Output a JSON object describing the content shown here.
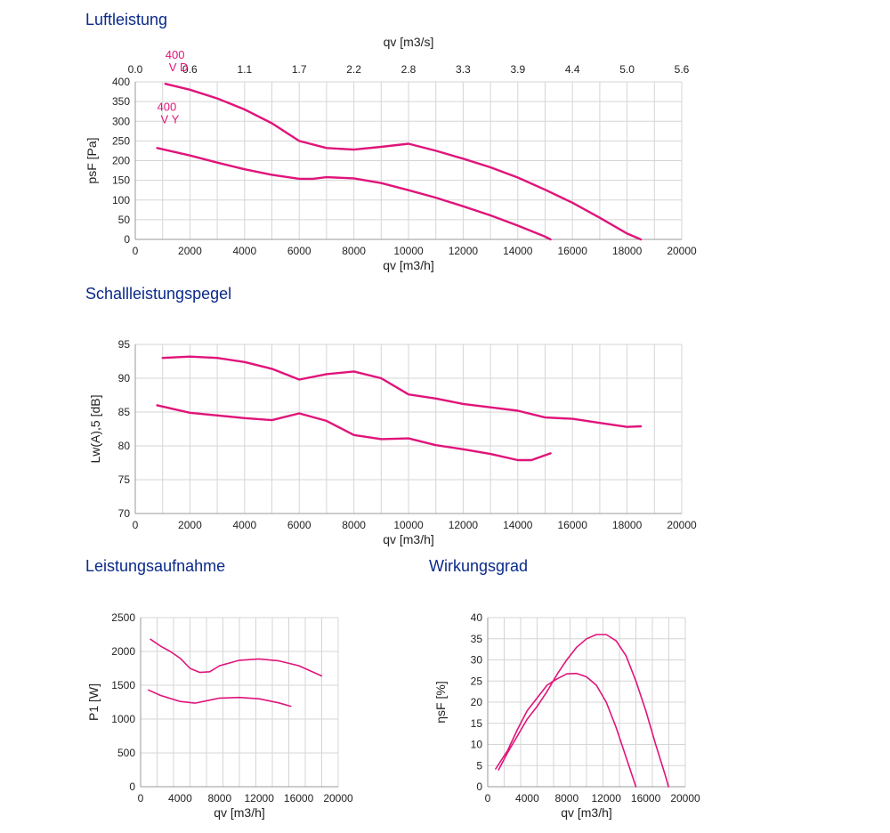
{
  "sections": {
    "luftleistung": "Luftleistung",
    "schall": "Schallleistungspegel",
    "leistung": "Leistungsaufnahme",
    "wirkung": "Wirkungsgrad"
  },
  "colors": {
    "curve": "#e0147a",
    "grid": "#d5d5d5",
    "axis": "#999999",
    "title": "#0b2a8a"
  },
  "chart_data": [
    {
      "id": "luftleistung",
      "type": "line",
      "title": "Luftleistung",
      "xlabel": "qv [m3/h]",
      "ylabel": "psF [Pa]",
      "x2label": "qv [m3/s]",
      "xlim": [
        0,
        20000
      ],
      "ylim": [
        0,
        400
      ],
      "xticks": [
        "0",
        "2000",
        "4000",
        "6000",
        "8000",
        "10000",
        "12000",
        "14000",
        "16000",
        "18000",
        "20000"
      ],
      "yticks": [
        "0",
        "50",
        "100",
        "150",
        "200",
        "250",
        "300",
        "350",
        "400"
      ],
      "x2ticks": [
        "0.0",
        "0.6",
        "1.1",
        "1.7",
        "2.2",
        "2.8",
        "3.3",
        "3.9",
        "4.4",
        "5.0",
        "5.6"
      ],
      "series": [
        {
          "name": "400 V D",
          "label_lines": [
            "400",
            "V D"
          ],
          "points": [
            [
              1100,
              395
            ],
            [
              2000,
              380
            ],
            [
              3000,
              358
            ],
            [
              4000,
              330
            ],
            [
              5000,
              295
            ],
            [
              6000,
              250
            ],
            [
              7000,
              232
            ],
            [
              8000,
              228
            ],
            [
              9000,
              235
            ],
            [
              10000,
              243
            ],
            [
              11000,
              225
            ],
            [
              12000,
              205
            ],
            [
              13000,
              183
            ],
            [
              14000,
              157
            ],
            [
              15000,
              126
            ],
            [
              16000,
              93
            ],
            [
              17000,
              55
            ],
            [
              18000,
              15
            ],
            [
              18500,
              0
            ]
          ]
        },
        {
          "name": "400 V Y",
          "label_lines": [
            "400",
            "V Y"
          ],
          "points": [
            [
              800,
              232
            ],
            [
              2000,
              213
            ],
            [
              3000,
              195
            ],
            [
              4000,
              178
            ],
            [
              5000,
              164
            ],
            [
              6000,
              154
            ],
            [
              6500,
              154
            ],
            [
              7000,
              158
            ],
            [
              8000,
              155
            ],
            [
              9000,
              143
            ],
            [
              10000,
              125
            ],
            [
              11000,
              106
            ],
            [
              12000,
              84
            ],
            [
              13000,
              61
            ],
            [
              14000,
              35
            ],
            [
              15000,
              7
            ],
            [
              15200,
              0
            ]
          ]
        }
      ]
    },
    {
      "id": "schall",
      "type": "line",
      "title": "Schallleistungspegel",
      "xlabel": "qv [m3/h]",
      "ylabel": "Lw(A),5 [dB]",
      "xlim": [
        0,
        20000
      ],
      "ylim": [
        70,
        95
      ],
      "xticks": [
        "0",
        "2000",
        "4000",
        "6000",
        "8000",
        "10000",
        "12000",
        "14000",
        "16000",
        "18000",
        "20000"
      ],
      "yticks": [
        "70",
        "75",
        "80",
        "85",
        "90",
        "95"
      ],
      "series": [
        {
          "points": [
            [
              1000,
              93
            ],
            [
              2000,
              93.2
            ],
            [
              3000,
              93
            ],
            [
              4000,
              92.4
            ],
            [
              5000,
              91.4
            ],
            [
              6000,
              89.8
            ],
            [
              7000,
              90.6
            ],
            [
              8000,
              91
            ],
            [
              9000,
              90
            ],
            [
              10000,
              87.6
            ],
            [
              11000,
              87
            ],
            [
              12000,
              86.2
            ],
            [
              13000,
              85.7
            ],
            [
              14000,
              85.2
            ],
            [
              15000,
              84.2
            ],
            [
              16000,
              84
            ],
            [
              17000,
              83.4
            ],
            [
              18000,
              82.8
            ],
            [
              18500,
              82.9
            ]
          ]
        },
        {
          "points": [
            [
              800,
              86
            ],
            [
              2000,
              84.9
            ],
            [
              3000,
              84.5
            ],
            [
              4000,
              84.1
            ],
            [
              5000,
              83.8
            ],
            [
              6000,
              84.8
            ],
            [
              7000,
              83.7
            ],
            [
              8000,
              81.6
            ],
            [
              9000,
              81
            ],
            [
              10000,
              81.1
            ],
            [
              11000,
              80.1
            ],
            [
              12000,
              79.5
            ],
            [
              13000,
              78.8
            ],
            [
              14000,
              77.9
            ],
            [
              14500,
              77.9
            ],
            [
              15200,
              78.9
            ]
          ]
        }
      ]
    },
    {
      "id": "leistung",
      "type": "line",
      "title": "Leistungsaufnahme",
      "xlabel": "qv [m3/h]",
      "ylabel": "P1 [W]",
      "xlim": [
        0,
        20000
      ],
      "ylim": [
        0,
        2500
      ],
      "xticks": [
        "0",
        "4000",
        "8000",
        "12000",
        "16000",
        "20000"
      ],
      "yticks": [
        "0",
        "500",
        "1000",
        "1500",
        "2000",
        "2500"
      ],
      "series": [
        {
          "points": [
            [
              1000,
              2180
            ],
            [
              2000,
              2080
            ],
            [
              3000,
              2000
            ],
            [
              4000,
              1900
            ],
            [
              5000,
              1750
            ],
            [
              6000,
              1690
            ],
            [
              7000,
              1700
            ],
            [
              8000,
              1790
            ],
            [
              10000,
              1870
            ],
            [
              12000,
              1890
            ],
            [
              14000,
              1860
            ],
            [
              16000,
              1790
            ],
            [
              18300,
              1640
            ]
          ]
        },
        {
          "points": [
            [
              800,
              1430
            ],
            [
              2000,
              1350
            ],
            [
              4000,
              1260
            ],
            [
              5500,
              1235
            ],
            [
              7000,
              1280
            ],
            [
              8000,
              1310
            ],
            [
              10000,
              1320
            ],
            [
              12000,
              1300
            ],
            [
              14000,
              1240
            ],
            [
              15200,
              1190
            ]
          ]
        }
      ]
    },
    {
      "id": "wirkung",
      "type": "line",
      "title": "Wirkungsgrad",
      "xlabel": "qv [m3/h]",
      "ylabel": "ηsF [%]",
      "xlim": [
        0,
        20000
      ],
      "ylim": [
        0,
        40
      ],
      "xticks": [
        "0",
        "4000",
        "8000",
        "12000",
        "16000",
        "20000"
      ],
      "yticks": [
        "0",
        "5",
        "10",
        "15",
        "20",
        "25",
        "30",
        "35",
        "40"
      ],
      "series": [
        {
          "points": [
            [
              1100,
              4
            ],
            [
              2000,
              8
            ],
            [
              3000,
              12
            ],
            [
              4000,
              16
            ],
            [
              5000,
              19
            ],
            [
              6000,
              22.5
            ],
            [
              7000,
              26.5
            ],
            [
              8000,
              30
            ],
            [
              9000,
              33
            ],
            [
              10000,
              35
            ],
            [
              11000,
              36
            ],
            [
              12000,
              36
            ],
            [
              13000,
              34.5
            ],
            [
              14000,
              31
            ],
            [
              15000,
              25
            ],
            [
              16000,
              18
            ],
            [
              17000,
              10
            ],
            [
              18000,
              2.5
            ],
            [
              18300,
              0
            ]
          ]
        },
        {
          "points": [
            [
              800,
              4.2
            ],
            [
              2000,
              8.5
            ],
            [
              3000,
              13.5
            ],
            [
              4000,
              18
            ],
            [
              5000,
              21
            ],
            [
              6000,
              24
            ],
            [
              7000,
              25.5
            ],
            [
              8000,
              26.7
            ],
            [
              9000,
              26.8
            ],
            [
              10000,
              26
            ],
            [
              11000,
              24
            ],
            [
              12000,
              20
            ],
            [
              13000,
              14
            ],
            [
              14000,
              7
            ],
            [
              15000,
              0
            ]
          ]
        }
      ]
    }
  ]
}
